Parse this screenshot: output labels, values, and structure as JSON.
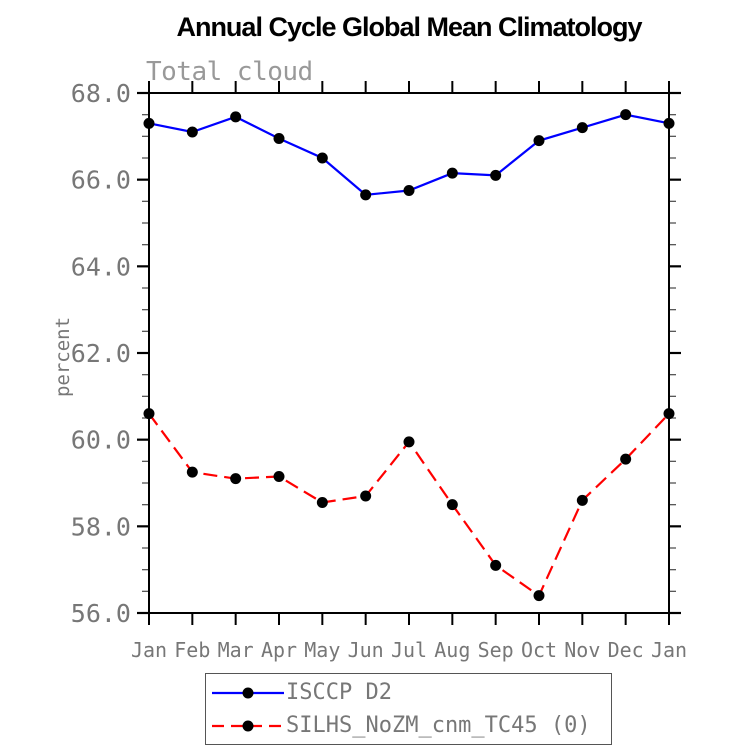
{
  "page": {
    "background": "#ffffff"
  },
  "chart_data": {
    "type": "line",
    "title": "Annual Cycle Global Mean Climatology",
    "subtitle": "Total cloud",
    "xlabel": "",
    "ylabel": "percent",
    "categories": [
      "Jan",
      "Feb",
      "Mar",
      "Apr",
      "May",
      "Jun",
      "Jul",
      "Aug",
      "Sep",
      "Oct",
      "Nov",
      "Dec",
      "Jan"
    ],
    "ylim": [
      56.0,
      68.0
    ],
    "yticks_major": [
      56.0,
      58.0,
      60.0,
      62.0,
      64.0,
      66.0,
      68.0
    ],
    "ytick_labels": [
      "56.0",
      "58.0",
      "60.0",
      "62.0",
      "64.0",
      "66.0",
      "68.0"
    ],
    "minor_tick_interval": 0.5,
    "grid": false,
    "legend_position": "bottom",
    "frame_color": "#000000",
    "axis_text_color": "#777777",
    "marker_color": "#000000",
    "series": [
      {
        "name": "ISCCP D2",
        "color": "#0000ff",
        "line_style": "solid",
        "marker": "circle",
        "values": [
          67.3,
          67.1,
          67.45,
          66.95,
          66.5,
          65.65,
          65.75,
          66.15,
          66.1,
          66.9,
          67.2,
          67.5,
          67.3
        ]
      },
      {
        "name": "SILHS_NoZM_cnm_TC45 (0)",
        "color": "#ff0000",
        "line_style": "dashed",
        "marker": "circle",
        "values": [
          60.6,
          59.25,
          59.1,
          59.15,
          58.55,
          58.7,
          59.95,
          58.5,
          57.1,
          56.4,
          58.6,
          59.55,
          60.6
        ]
      }
    ]
  }
}
